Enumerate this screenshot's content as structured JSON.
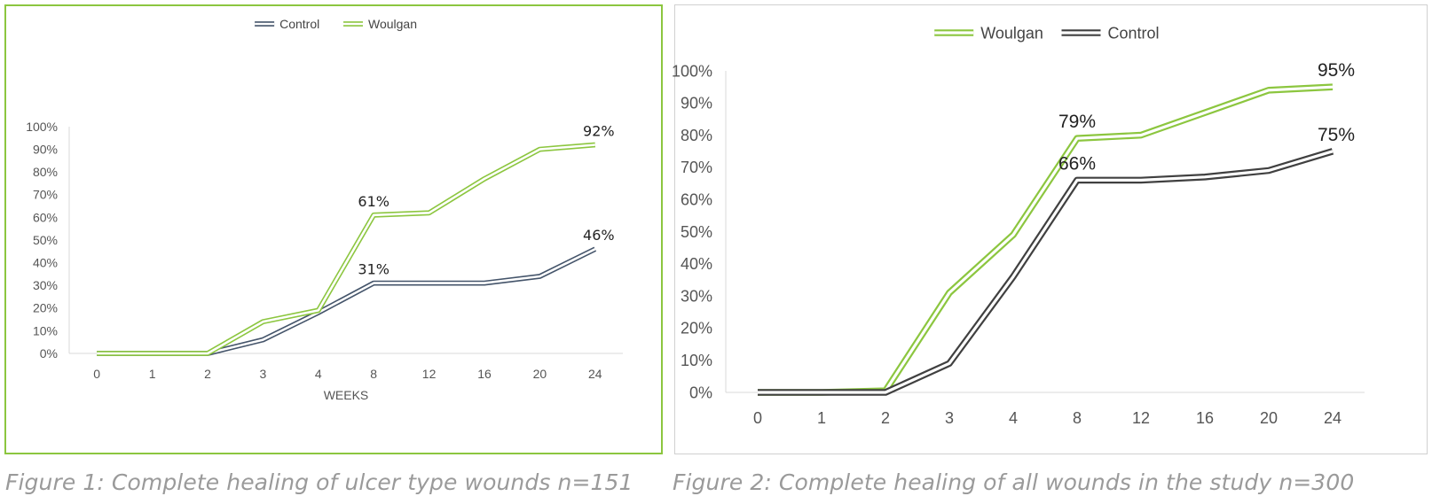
{
  "chart_data": [
    {
      "type": "line",
      "categories": [
        "0",
        "1",
        "2",
        "3",
        "4",
        "8",
        "12",
        "16",
        "20",
        "24"
      ],
      "xlabel": "WEEKS",
      "ylabel": "",
      "ylim": [
        0,
        100
      ],
      "yticks": [
        "0%",
        "10%",
        "20%",
        "30%",
        "40%",
        "50%",
        "60%",
        "70%",
        "80%",
        "90%",
        "100%"
      ],
      "legend_position": "top-center",
      "series": [
        {
          "name": "Control",
          "color": "#44546a",
          "values": [
            0,
            0,
            0,
            6,
            18,
            31,
            31,
            31,
            34,
            46
          ]
        },
        {
          "name": "Woulgan",
          "color": "#8cc63f",
          "values": [
            0,
            0,
            0,
            14,
            19,
            61,
            62,
            77,
            90,
            92
          ]
        }
      ],
      "annotations": [
        {
          "series": "Woulgan",
          "category": "8",
          "value": 61,
          "text": "61%"
        },
        {
          "series": "Woulgan",
          "category": "24",
          "value": 92,
          "text": "92%"
        },
        {
          "series": "Control",
          "category": "8",
          "value": 31,
          "text": "31%"
        },
        {
          "series": "Control",
          "category": "24",
          "value": 46,
          "text": "46%"
        }
      ]
    },
    {
      "type": "line",
      "categories": [
        "0",
        "1",
        "2",
        "3",
        "4",
        "8",
        "12",
        "16",
        "20",
        "24"
      ],
      "xlabel": "",
      "ylabel": "",
      "ylim": [
        0,
        100
      ],
      "yticks": [
        "0%",
        "10%",
        "20%",
        "30%",
        "40%",
        "50%",
        "60%",
        "70%",
        "80%",
        "90%",
        "100%"
      ],
      "legend_position": "top-center",
      "series": [
        {
          "name": "Woulgan",
          "color": "#8cc63f",
          "values": [
            0,
            0,
            0.5,
            31,
            49,
            79,
            80,
            87,
            94,
            95
          ]
        },
        {
          "name": "Control",
          "color": "#404040",
          "values": [
            0,
            0,
            0,
            9,
            36,
            66,
            66,
            67,
            69,
            75
          ]
        }
      ],
      "annotations": [
        {
          "series": "Woulgan",
          "category": "8",
          "value": 79,
          "text": "79%"
        },
        {
          "series": "Woulgan",
          "category": "24",
          "value": 95,
          "text": "95%"
        },
        {
          "series": "Control",
          "category": "8",
          "value": 66,
          "text": "66%"
        },
        {
          "series": "Control",
          "category": "24",
          "value": 75,
          "text": "75%"
        }
      ]
    }
  ],
  "captions": [
    "Figure 1: Complete healing of ulcer type wounds n=151",
    "Figure 2: Complete healing of all wounds in the study n=300"
  ]
}
